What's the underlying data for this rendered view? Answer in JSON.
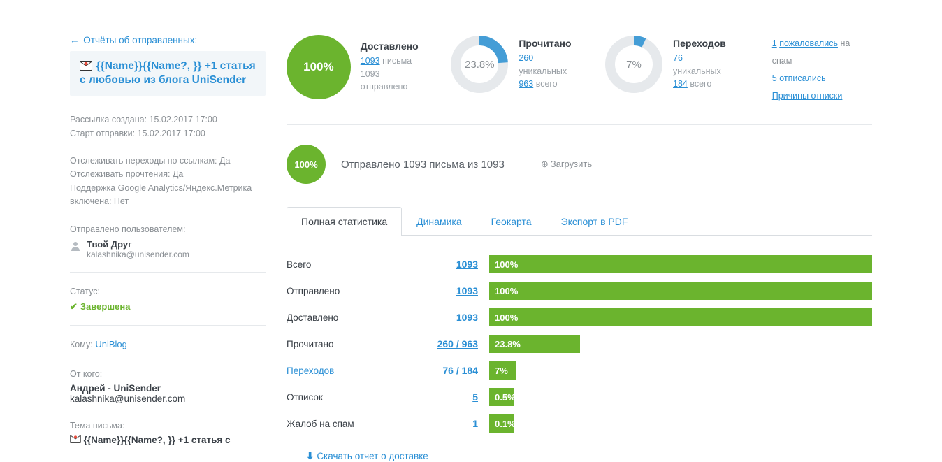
{
  "colors": {
    "green": "#6bb42e",
    "blue": "#2a8fd5",
    "ring_bg": "#e6e9ec",
    "ring_fg": "#449dd6"
  },
  "back_link": "Отчёты об отправленных:",
  "campaign_title": "{{Name}}{{Name?, }} +1 статья с любовью из блога UniSender",
  "meta": {
    "created": "Рассылка создана: 15.02.2017 17:00",
    "started": "Старт отправки: 15.02.2017 17:00",
    "track_links": "Отслеживать переходы по ссылкам: Да",
    "track_reads": "Отслеживать прочтения: Да",
    "ga": "Поддержка Google Analytics/Яндекс.Метрика включена: Нет"
  },
  "sent_by_label": "Отправлено пользователем:",
  "sender": {
    "name": "Твой Друг",
    "email": "kalashnika@unisender.com"
  },
  "status_label": "Статус:",
  "status_value": "Завершена",
  "to_label": "Кому:",
  "to_value": "UniBlog",
  "from_label": "От кого:",
  "from_name": "Андрей - UniSender",
  "from_email": "kalashnika@unisender.com",
  "subject_label": "Тема письма:",
  "subject_value": "{{Name}}{{Name?, }} +1 статья с",
  "metrics": {
    "delivered": {
      "title": "Доставлено",
      "pct": "100%",
      "pct_num": 100,
      "n": "1093",
      "n_suffix": "письма",
      "sub_n": "1093",
      "sub_suffix": "отправлено"
    },
    "read": {
      "title": "Прочитано",
      "pct": "23.8%",
      "pct_num": 23.8,
      "n": "260",
      "n_suffix": "уникальных",
      "sub_n": "963",
      "sub_suffix": "всего"
    },
    "clicks": {
      "title": "Переходов",
      "pct": "7%",
      "pct_num": 7,
      "n": "76",
      "n_suffix": "уникальных",
      "sub_n": "184",
      "sub_suffix": "всего"
    }
  },
  "side": {
    "spam_n": "1",
    "spam_txt": "пожаловались",
    "spam_suffix": "на спам",
    "unsub_n": "5",
    "unsub_txt": "отписались",
    "reasons": "Причины отписки"
  },
  "sent_row": {
    "pct": "100%",
    "text": "Отправлено 1093 письма из 1093",
    "download": "Загрузить"
  },
  "tabs": [
    "Полная статистика",
    "Динамика",
    "Геокарта",
    "Экспорт в PDF"
  ],
  "stats": [
    {
      "label": "Всего",
      "value": "1093",
      "pct": 100,
      "pct_label": "100%"
    },
    {
      "label": "Отправлено",
      "value": "1093",
      "pct": 100,
      "pct_label": "100%"
    },
    {
      "label": "Доставлено",
      "value": "1093",
      "pct": 100,
      "pct_label": "100%"
    },
    {
      "label": "Прочитано",
      "value": "260 / 963",
      "pct": 23.8,
      "pct_label": "23.8%"
    },
    {
      "label": "Переходов",
      "value": "76 / 184",
      "pct": 7,
      "pct_label": "7%",
      "label_link": true
    },
    {
      "label": "Отписок",
      "value": "5",
      "pct": 0.5,
      "pct_label": "0.5%"
    },
    {
      "label": "Жалоб на спам",
      "value": "1",
      "pct": 0.1,
      "pct_label": "0.1%"
    }
  ],
  "download_report": "Скачать отчет о доставке"
}
